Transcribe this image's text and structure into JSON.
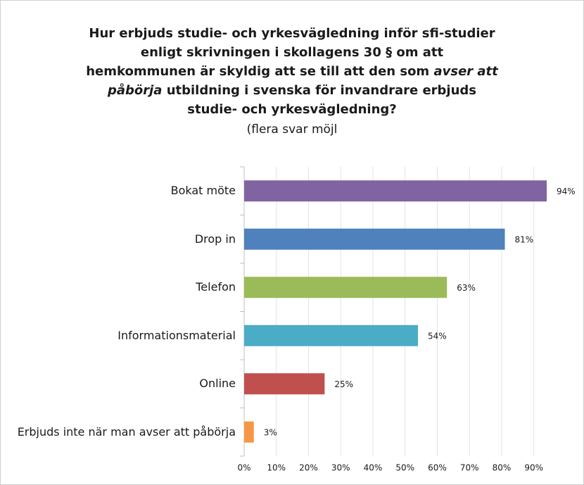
{
  "chart_data": {
    "type": "bar",
    "orientation": "horizontal",
    "title_lines": [
      [
        {
          "text": "Hur erbjuds studie- och yrkesvägledning inför sfi-studier",
          "italic": false
        }
      ],
      [
        {
          "text": "enligt skrivningen i skollagens 30 § om att",
          "italic": false
        }
      ],
      [
        {
          "text": "hemkommunen är skyldig att se till att den som ",
          "italic": false
        },
        {
          "text": "avser att",
          "italic": true
        }
      ],
      [
        {
          "text": "påbörja",
          "italic": true
        },
        {
          "text": " utbildning i svenska för invandrare erbjuds",
          "italic": false
        }
      ],
      [
        {
          "text": "studie- och yrkesvägledning?",
          "italic": false
        }
      ]
    ],
    "subtitle": "(flera svar möjl",
    "categories": [
      "Bokat möte",
      "Drop in",
      "Telefon",
      "Informationsmaterial",
      "Online",
      "Erbjuds inte när man avser att påbörja"
    ],
    "values": [
      94,
      81,
      63,
      54,
      25,
      3
    ],
    "value_labels": [
      "94%",
      "81%",
      "63%",
      "54%",
      "25%",
      "3%"
    ],
    "colors": [
      "#8064a2",
      "#4f81bd",
      "#9bbb59",
      "#4bacc6",
      "#c0504d",
      "#f79646"
    ],
    "xlim": [
      0,
      94
    ],
    "xticks": [
      {
        "value": 0,
        "label": "0%"
      },
      {
        "value": 10,
        "label": "10%"
      },
      {
        "value": 20,
        "label": "20%"
      },
      {
        "value": 30,
        "label": "30%"
      },
      {
        "value": 40,
        "label": "40%"
      },
      {
        "value": 50,
        "label": "50%"
      },
      {
        "value": 60,
        "label": "60%"
      },
      {
        "value": 70,
        "label": "70%"
      },
      {
        "value": 80,
        "label": "80%"
      },
      {
        "value": 90,
        "label": "90%"
      }
    ],
    "grid": true
  }
}
